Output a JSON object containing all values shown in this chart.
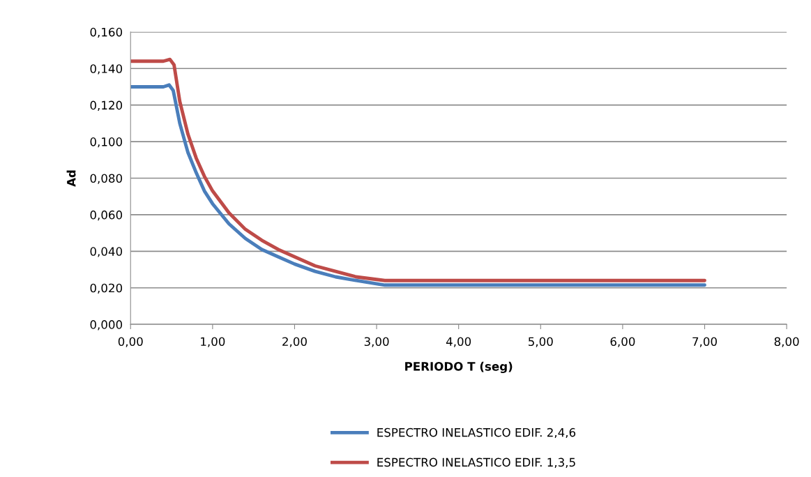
{
  "chart_data": {
    "type": "line",
    "xlabel": "PERIODO T (seg)",
    "ylabel": "Ad",
    "xlim": [
      0,
      8
    ],
    "ylim": [
      0,
      0.16
    ],
    "xticks": [
      {
        "value": 0,
        "label": "0,00"
      },
      {
        "value": 1,
        "label": "1,00"
      },
      {
        "value": 2,
        "label": "2,00"
      },
      {
        "value": 3,
        "label": "3,00"
      },
      {
        "value": 4,
        "label": "4,00"
      },
      {
        "value": 5,
        "label": "5,00"
      },
      {
        "value": 6,
        "label": "6,00"
      },
      {
        "value": 7,
        "label": "7,00"
      },
      {
        "value": 8,
        "label": "8,00"
      }
    ],
    "yticks": [
      {
        "value": 0,
        "label": "0,000"
      },
      {
        "value": 0.02,
        "label": "0,020"
      },
      {
        "value": 0.04,
        "label": "0,040"
      },
      {
        "value": 0.06,
        "label": "0,060"
      },
      {
        "value": 0.08,
        "label": "0,080"
      },
      {
        "value": 0.1,
        "label": "0,100"
      },
      {
        "value": 0.12,
        "label": "0,120"
      },
      {
        "value": 0.14,
        "label": "0,140"
      },
      {
        "value": 0.16,
        "label": "0,160"
      }
    ],
    "grid": "y",
    "legend": "bottom",
    "marker": "none",
    "line_style": "solid",
    "series": [
      {
        "name": "ESPECTRO INELASTICO EDIF. 2,4,6",
        "color": "#4a7ebb",
        "x": [
          0,
          0.4,
          0.47,
          0.52,
          0.6,
          0.7,
          0.8,
          0.9,
          1.0,
          1.2,
          1.4,
          1.6,
          1.8,
          2.0,
          2.25,
          2.5,
          2.75,
          3.1,
          7.0
        ],
        "values": [
          0.13,
          0.13,
          0.131,
          0.128,
          0.11,
          0.094,
          0.083,
          0.073,
          0.066,
          0.055,
          0.047,
          0.041,
          0.037,
          0.033,
          0.029,
          0.026,
          0.024,
          0.0215,
          0.0215
        ]
      },
      {
        "name": "ESPECTRO INELASTICO EDIF. 1,3,5",
        "color": "#be4b48",
        "x": [
          0,
          0.4,
          0.48,
          0.53,
          0.6,
          0.7,
          0.8,
          0.9,
          1.0,
          1.2,
          1.4,
          1.6,
          1.8,
          2.0,
          2.25,
          2.5,
          2.75,
          3.1,
          7.0
        ],
        "values": [
          0.144,
          0.144,
          0.145,
          0.142,
          0.122,
          0.104,
          0.091,
          0.081,
          0.073,
          0.061,
          0.052,
          0.046,
          0.041,
          0.037,
          0.032,
          0.029,
          0.026,
          0.024,
          0.024
        ]
      }
    ]
  }
}
